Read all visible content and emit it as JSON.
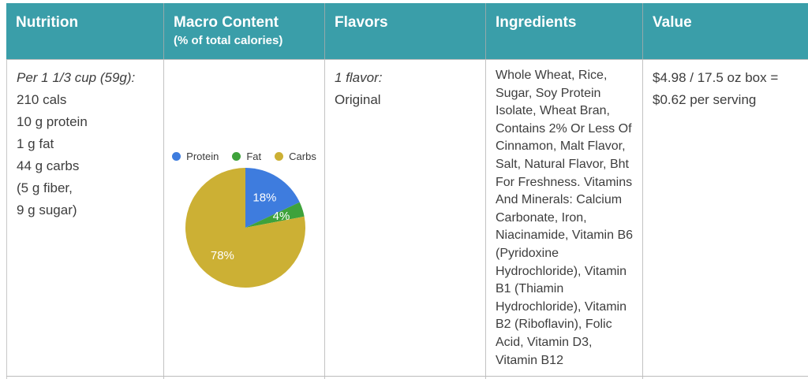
{
  "table": {
    "columns": [
      {
        "id": "nutrition",
        "label": "Nutrition",
        "sublabel": ""
      },
      {
        "id": "macro",
        "label": "Macro Content",
        "sublabel": "(% of total calories)"
      },
      {
        "id": "flavors",
        "label": "Flavors",
        "sublabel": ""
      },
      {
        "id": "ingredients",
        "label": "Ingredients",
        "sublabel": ""
      },
      {
        "id": "value",
        "label": "Value",
        "sublabel": ""
      }
    ],
    "row": {
      "nutrition": {
        "serving_note": "Per 1 1/3 cup (59g):",
        "lines": [
          "210 cals",
          "10 g protein",
          "1 g fat",
          "44 g carbs",
          "(5 g fiber,",
          "9 g sugar)"
        ]
      },
      "flavors": {
        "note": "1 flavor:",
        "value": "Original"
      },
      "ingredients": "Whole Wheat, Rice, Sugar, Soy Protein Isolate, Wheat Bran, Contains 2% Or Less Of Cinnamon, Malt Flavor, Salt, Natural Flavor, Bht For Freshness. Vitamins And Minerals: Calcium Carbonate, Iron, Niacinamide, Vitamin B6 (Pyridoxine Hydrochloride), Vitamin B1 (Thiamin Hydrochloride), Vitamin B2 (Riboflavin), Folic Acid, Vitamin D3, Vitamin B12",
      "value": "$4.98 / 17.5 oz box = $0.62 per serving"
    }
  },
  "chart_data": {
    "type": "pie",
    "categories": [
      "Protein",
      "Fat",
      "Carbs"
    ],
    "values": [
      18,
      4,
      78
    ],
    "slice_labels": [
      "18%",
      "4%",
      "78%"
    ],
    "colors": [
      "#3E7CDE",
      "#3EA23B",
      "#CCB034"
    ],
    "title": "",
    "legend_position": "top"
  },
  "colors": {
    "header_bg": "#3A9EA9",
    "header_text": "#FFFFFF",
    "body_text": "#3D3D3D",
    "border": "#BCBCBC"
  }
}
